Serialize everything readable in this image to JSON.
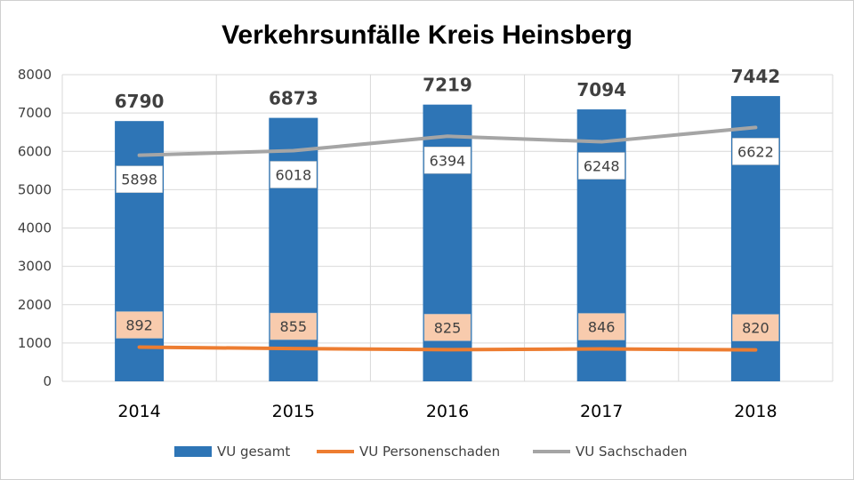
{
  "chart_data": {
    "type": "bar",
    "title": "Verkehrsunfälle Kreis Heinsberg",
    "categories": [
      "2014",
      "2015",
      "2016",
      "2017",
      "2018"
    ],
    "ylim": [
      0,
      8000
    ],
    "yticks": [
      0,
      1000,
      2000,
      3000,
      4000,
      5000,
      6000,
      7000,
      8000
    ],
    "grid": true,
    "legend_position": "bottom",
    "series": [
      {
        "name": "VU gesamt",
        "kind": "bar",
        "color": "#2E75B6",
        "values": [
          6790,
          6873,
          7219,
          7094,
          7442
        ]
      },
      {
        "name": "VU Personenschaden",
        "kind": "line",
        "color": "#ED7D31",
        "label_fill": "#F8CBAD",
        "values": [
          892,
          855,
          825,
          846,
          820
        ]
      },
      {
        "name": "VU Sachschaden",
        "kind": "line",
        "color": "#A5A5A5",
        "label_fill": "#FFFFFF",
        "values": [
          5898,
          6018,
          6394,
          6248,
          6622
        ]
      }
    ]
  }
}
